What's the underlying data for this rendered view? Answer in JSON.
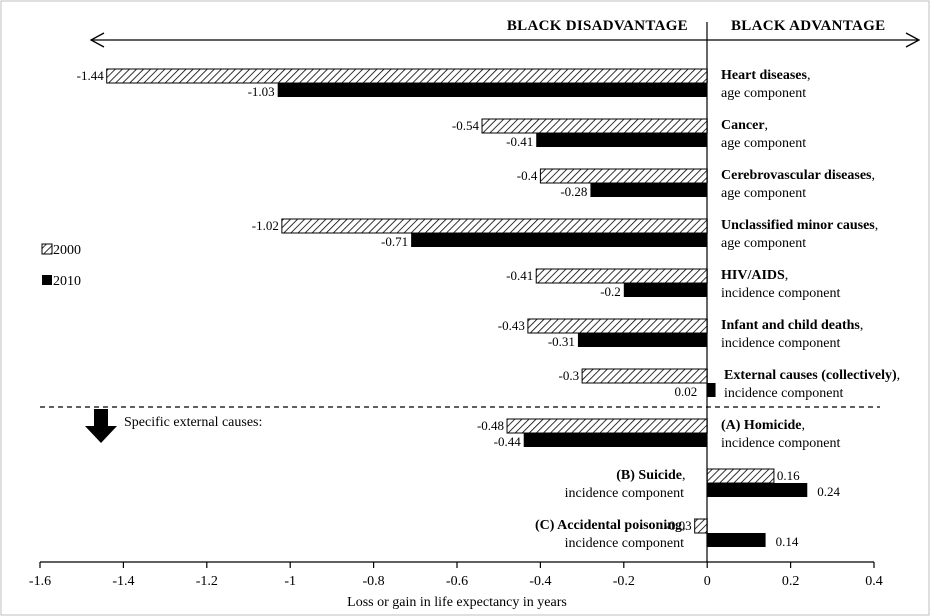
{
  "chart_data": {
    "type": "bar",
    "orientation": "horizontal",
    "xlabel": "Loss or gain in life expectancy in years",
    "xlim": [
      -1.6,
      0.4
    ],
    "xticks": [
      "-1.6",
      "-1.4",
      "-1.2",
      "-1",
      "-0.8",
      "-0.6",
      "-0.4",
      "-0.2",
      "0",
      "0.2",
      "0.4"
    ],
    "headers": {
      "left": "BLACK DISADVANTAGE",
      "right": "BLACK ADVANTAGE"
    },
    "series": [
      {
        "name": "2000",
        "pattern": "hatched"
      },
      {
        "name": "2010",
        "color": "#000000"
      }
    ],
    "categories": [
      {
        "name": "Heart diseases",
        "component": "age component",
        "values": [
          -1.44,
          -1.03
        ],
        "labels": [
          "-1.44",
          "-1.03"
        ]
      },
      {
        "name": "Cancer",
        "component": "age component",
        "values": [
          -0.54,
          -0.41
        ],
        "labels": [
          "-0.54",
          "-0.41"
        ]
      },
      {
        "name": "Cerebrovascular diseases",
        "component": "age component",
        "values": [
          -0.4,
          -0.28
        ],
        "labels": [
          "-0.4",
          "-0.28"
        ]
      },
      {
        "name": "Unclassified minor causes",
        "component": "age component",
        "values": [
          -1.02,
          -0.71
        ],
        "labels": [
          "-1.02",
          "-0.71"
        ]
      },
      {
        "name": "HIV/AIDS",
        "component": "incidence component",
        "values": [
          -0.41,
          -0.2
        ],
        "labels": [
          "-0.41",
          "-0.2"
        ]
      },
      {
        "name": "Infant and child deaths",
        "component": "incidence component",
        "values": [
          -0.43,
          -0.31
        ],
        "labels": [
          "-0.43",
          "-0.31"
        ]
      },
      {
        "name": "External causes (collectively)",
        "component": "incidence component",
        "values": [
          -0.3,
          0.02
        ],
        "labels": [
          "-0.3",
          "0.02"
        ]
      },
      {
        "name": "(A) Homicide",
        "component": "incidence component",
        "values": [
          -0.48,
          -0.44
        ],
        "labels": [
          "-0.48",
          "-0.44"
        ]
      },
      {
        "name": "(B) Suicide",
        "component": "incidence component",
        "values": [
          0.16,
          0.24
        ],
        "labels": [
          "0.16",
          "0.24"
        ]
      },
      {
        "name": "(C) Accidental poisoning",
        "component": "incidence component",
        "values": [
          -0.03,
          0.14
        ],
        "labels": [
          "-0.03",
          "0.14"
        ]
      }
    ],
    "divider_label": "Specific external causes:",
    "legend_position": "left",
    "grid": false
  }
}
